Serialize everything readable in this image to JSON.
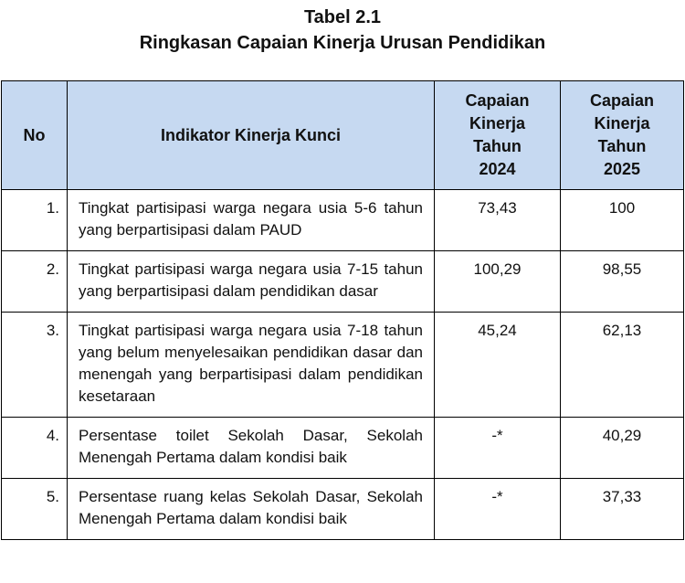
{
  "header": {
    "title": "Tabel 2.1",
    "subtitle": "Ringkasan Capaian Kinerja Urusan Pendidikan"
  },
  "table": {
    "columns": [
      "No",
      "Indikator Kinerja Kunci",
      "Capaian Kinerja Tahun 2024",
      "Capaian Kinerja Tahun 2025"
    ],
    "rows": [
      [
        "1.",
        "Tingkat partisipasi warga negara usia 5-6 tahun yang berpartisipasi dalam PAUD",
        "73,43",
        "100"
      ],
      [
        "2.",
        "Tingkat partisipasi warga negara usia 7-15 tahun yang berpartisipasi dalam pendidikan dasar",
        "100,29",
        "98,55"
      ],
      [
        "3.",
        "Tingkat partisipasi warga negara usia 7-18 tahun yang belum menyelesaikan pendidikan dasar dan menengah yang berpartisipasi dalam pendidikan kesetaraan",
        "45,24",
        "62,13"
      ],
      [
        "4.",
        "Persentase toilet Sekolah Dasar, Sekolah Menengah Pertama dalam kondisi baik",
        "-*",
        "40,29"
      ],
      [
        "5.",
        "Persentase ruang kelas Sekolah Dasar, Sekolah Menengah Pertama dalam kondisi baik",
        "-*",
        "37,33"
      ]
    ]
  }
}
